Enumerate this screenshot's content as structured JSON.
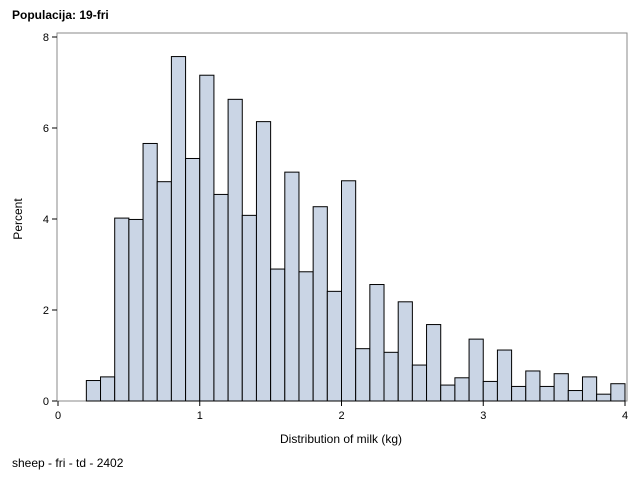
{
  "title": "Populacija: 19-fri",
  "footnote": "sheep - fri - td - 2402",
  "chart_data": {
    "type": "bar",
    "xlabel": "Distribution of milk (kg)",
    "ylabel": "Percent",
    "xlim": [
      0,
      4
    ],
    "ylim": [
      0,
      8
    ],
    "xticks": [
      "0",
      "1",
      "2",
      "3",
      "4"
    ],
    "yticks": [
      "0",
      "2",
      "4",
      "6",
      "8"
    ],
    "bin_width": 0.1,
    "bins": [
      {
        "x": 0.25,
        "y": 0.45
      },
      {
        "x": 0.35,
        "y": 0.53
      },
      {
        "x": 0.45,
        "y": 4.02
      },
      {
        "x": 0.55,
        "y": 3.99
      },
      {
        "x": 0.65,
        "y": 5.66
      },
      {
        "x": 0.75,
        "y": 4.82
      },
      {
        "x": 0.85,
        "y": 7.57
      },
      {
        "x": 0.95,
        "y": 5.33
      },
      {
        "x": 1.05,
        "y": 7.16
      },
      {
        "x": 1.15,
        "y": 4.54
      },
      {
        "x": 1.25,
        "y": 6.63
      },
      {
        "x": 1.35,
        "y": 4.08
      },
      {
        "x": 1.45,
        "y": 6.14
      },
      {
        "x": 1.55,
        "y": 2.9
      },
      {
        "x": 1.65,
        "y": 5.03
      },
      {
        "x": 1.75,
        "y": 2.84
      },
      {
        "x": 1.85,
        "y": 4.27
      },
      {
        "x": 1.95,
        "y": 2.41
      },
      {
        "x": 2.05,
        "y": 4.84
      },
      {
        "x": 2.15,
        "y": 1.15
      },
      {
        "x": 2.25,
        "y": 2.56
      },
      {
        "x": 2.35,
        "y": 1.07
      },
      {
        "x": 2.45,
        "y": 2.18
      },
      {
        "x": 2.55,
        "y": 0.79
      },
      {
        "x": 2.65,
        "y": 1.68
      },
      {
        "x": 2.75,
        "y": 0.35
      },
      {
        "x": 2.85,
        "y": 0.51
      },
      {
        "x": 2.95,
        "y": 1.36
      },
      {
        "x": 3.05,
        "y": 0.43
      },
      {
        "x": 3.15,
        "y": 1.12
      },
      {
        "x": 3.25,
        "y": 0.32
      },
      {
        "x": 3.35,
        "y": 0.66
      },
      {
        "x": 3.45,
        "y": 0.32
      },
      {
        "x": 3.55,
        "y": 0.6
      },
      {
        "x": 3.65,
        "y": 0.23
      },
      {
        "x": 3.75,
        "y": 0.53
      },
      {
        "x": 3.85,
        "y": 0.15
      },
      {
        "x": 3.95,
        "y": 0.38
      }
    ],
    "bar_fill": "#cad5e5",
    "bar_stroke": "#000000",
    "grid": false
  }
}
